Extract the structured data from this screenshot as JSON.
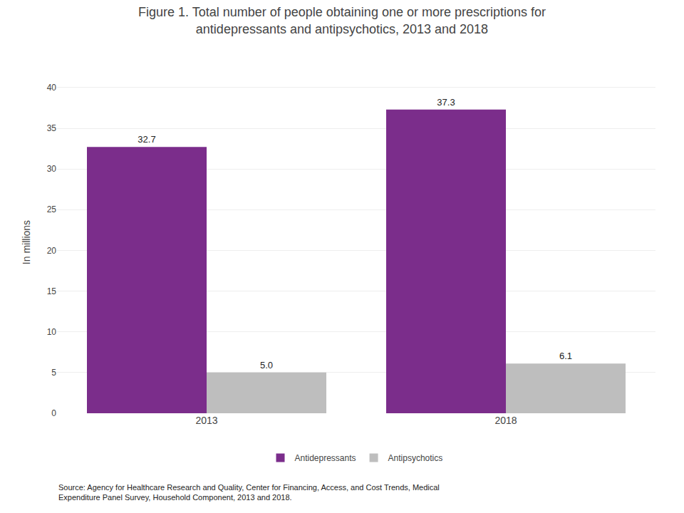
{
  "chart_data": {
    "type": "bar",
    "title": "Figure 1. Total number of people obtaining one or more prescriptions for\nantidepressants and antipsychotics, 2013 and 2018",
    "ylabel": "In millions",
    "categories": [
      "2013",
      "2018"
    ],
    "series": [
      {
        "name": "Antidepressants",
        "color": "#7B2D8B",
        "values": [
          32.7,
          37.3
        ],
        "value_labels": [
          "32.7",
          "37.3"
        ]
      },
      {
        "name": "Antipsychotics",
        "color": "#BEBEBE",
        "values": [
          5.0,
          6.1
        ],
        "value_labels": [
          "5.0",
          "6.1"
        ]
      }
    ],
    "ylim": [
      0,
      42
    ],
    "yticks": [
      0,
      5,
      10,
      15,
      20,
      25,
      30,
      35,
      40
    ],
    "grid": true,
    "legend": "bottom",
    "data_labels": true,
    "annotations": [
      "Source: Agency for Healthcare Research and Quality, Center for Financing, Access, and Cost Trends, Medical\nExpenditure Panel Survey, Household Component, 2013 and 2018."
    ]
  }
}
